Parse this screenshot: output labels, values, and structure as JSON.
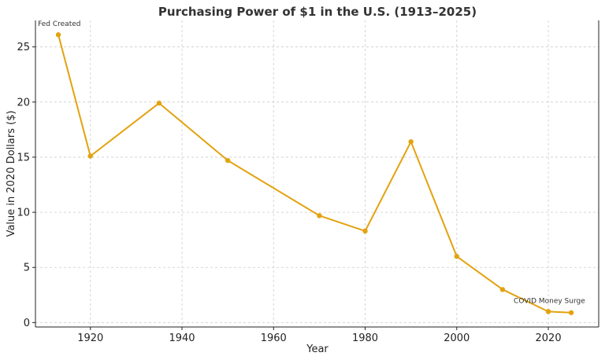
{
  "chart_data": {
    "type": "line",
    "title": "Purchasing Power of $1 in the U.S. (1913–2025)",
    "xlabel": "Year",
    "ylabel": "Value in 2020 Dollars ($)",
    "xlim": [
      1908,
      2031
    ],
    "ylim": [
      -0.4,
      27.4
    ],
    "xticks": [
      1920,
      1940,
      1960,
      1980,
      2000,
      2020
    ],
    "yticks": [
      0,
      5,
      10,
      15,
      20,
      25
    ],
    "grid": true,
    "line_color": "#e3a20f",
    "series": [
      {
        "x": [
          1913,
          1920,
          1935,
          1950,
          1970,
          1980,
          1990,
          2000,
          2010,
          2020,
          2025
        ],
        "values": [
          26.1,
          15.1,
          19.9,
          14.7,
          9.7,
          8.3,
          16.4,
          6.0,
          3.0,
          1.0,
          0.9
        ]
      }
    ],
    "annotations": [
      {
        "text": "Fed Created",
        "x": 1913,
        "y": 26.1
      },
      {
        "text": "COVID Money Surge",
        "x": 2020,
        "y": 1.0
      }
    ]
  }
}
